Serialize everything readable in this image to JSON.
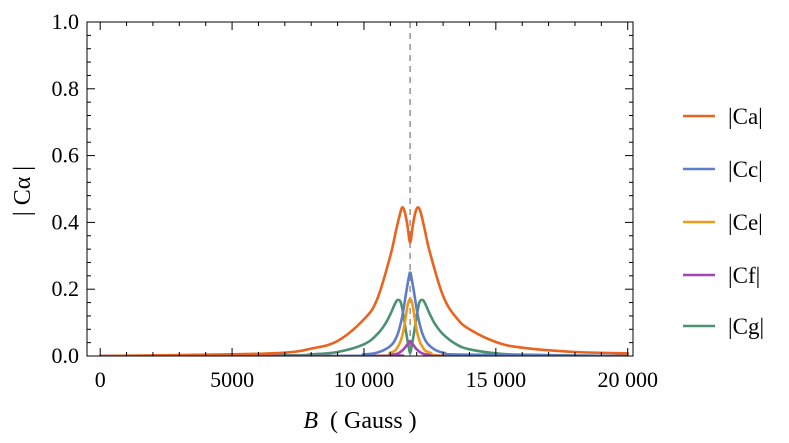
{
  "chart_data": {
    "type": "line",
    "xlabel": "( Gauss )",
    "xlabel_var": "B",
    "ylabel": "| Cα |",
    "xlim": [
      -500,
      20200
    ],
    "ylim": [
      0,
      1.0
    ],
    "x_ticks": [
      0,
      5000,
      10000,
      15000,
      20000
    ],
    "x_tick_labels": [
      "0",
      "5000",
      "10 000",
      "15 000",
      "20 000"
    ],
    "y_ticks": [
      0,
      0.2,
      0.4,
      0.6,
      0.8,
      1.0
    ],
    "y_tick_labels": [
      "0.0",
      "0.2",
      "0.4",
      "0.6",
      "0.8",
      "1.0"
    ],
    "grid": false,
    "legend_position": "right",
    "reference_line": {
      "x": 11750,
      "style": "dashed",
      "color": "#999999"
    },
    "series": [
      {
        "name": "|Ca|",
        "color": "#E8641F",
        "x": [
          0,
          5000,
          7000,
          8000,
          9000,
          10000,
          10500,
          11000,
          11200,
          11350,
          11450,
          11550,
          11650,
          11750,
          11850,
          11950,
          12050,
          12150,
          12300,
          12500,
          13000,
          13500,
          14000,
          15000,
          16000,
          18000,
          20000
        ],
        "y": [
          0.0,
          0.005,
          0.01,
          0.022,
          0.045,
          0.11,
          0.17,
          0.3,
          0.37,
          0.42,
          0.445,
          0.43,
          0.39,
          0.34,
          0.39,
          0.43,
          0.445,
          0.43,
          0.38,
          0.31,
          0.18,
          0.115,
          0.08,
          0.042,
          0.025,
          0.012,
          0.008
        ]
      },
      {
        "name": "|Cc|",
        "color": "#5E7DC9",
        "x": [
          0,
          9000,
          10000,
          10500,
          11000,
          11250,
          11400,
          11500,
          11600,
          11700,
          11750,
          11800,
          11900,
          12000,
          12100,
          12250,
          12500,
          13000,
          14000,
          20000
        ],
        "y": [
          0.0,
          0.0,
          0.005,
          0.01,
          0.03,
          0.06,
          0.1,
          0.14,
          0.19,
          0.235,
          0.25,
          0.235,
          0.19,
          0.14,
          0.1,
          0.06,
          0.03,
          0.01,
          0.004,
          0.0
        ]
      },
      {
        "name": "|Ce|",
        "color": "#F09A1A",
        "x": [
          0,
          10000,
          11000,
          11300,
          11450,
          11550,
          11650,
          11700,
          11750,
          11800,
          11850,
          11950,
          12050,
          12200,
          12500,
          13500,
          20000
        ],
        "y": [
          0.0,
          0.0,
          0.01,
          0.03,
          0.06,
          0.1,
          0.15,
          0.165,
          0.17,
          0.165,
          0.15,
          0.1,
          0.06,
          0.03,
          0.01,
          0.0,
          0.0
        ]
      },
      {
        "name": "|Cf|",
        "color": "#A347B0",
        "x": [
          0,
          10500,
          11000,
          11300,
          11500,
          11600,
          11700,
          11750,
          11800,
          11900,
          12000,
          12200,
          12500,
          13000,
          20000
        ],
        "y": [
          0.0,
          0.0,
          0.003,
          0.008,
          0.02,
          0.03,
          0.04,
          0.045,
          0.04,
          0.03,
          0.02,
          0.008,
          0.003,
          0.0,
          0.0
        ]
      },
      {
        "name": "|Cg|",
        "color": "#4B9272",
        "x": [
          0,
          7000,
          8000,
          9000,
          10000,
          10500,
          10800,
          11000,
          11200,
          11300,
          11400,
          11500,
          11600,
          11700,
          11750,
          11800,
          11900,
          12000,
          12100,
          12200,
          12300,
          12500,
          12700,
          13000,
          13500,
          14000,
          15000,
          16000,
          20000
        ],
        "y": [
          0.0,
          0.002,
          0.005,
          0.012,
          0.035,
          0.065,
          0.095,
          0.125,
          0.16,
          0.168,
          0.16,
          0.12,
          0.07,
          0.025,
          0.01,
          0.025,
          0.07,
          0.12,
          0.16,
          0.168,
          0.16,
          0.125,
          0.095,
          0.065,
          0.035,
          0.02,
          0.008,
          0.004,
          0.0
        ]
      }
    ]
  }
}
